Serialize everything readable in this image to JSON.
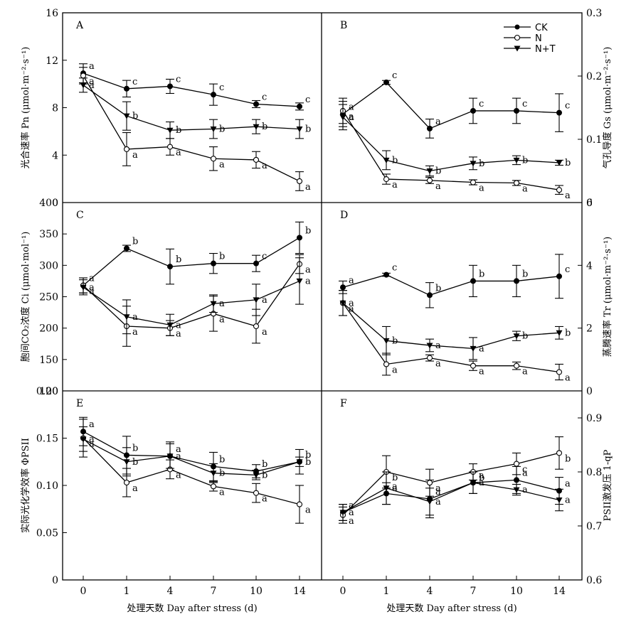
{
  "chart_data": {
    "type": "line",
    "shared_x_categories": [
      "0",
      "1",
      "4",
      "7",
      "10",
      "14"
    ],
    "x_axis_label": "处理天数 Day after stress (d)",
    "legend": [
      {
        "name": "CK",
        "marker": "filled-circle"
      },
      {
        "name": "N",
        "marker": "open-circle"
      },
      {
        "name": "N+T",
        "marker": "filled-triangle-down"
      }
    ],
    "panels": [
      {
        "letter": "A",
        "ylabel": "光合速率 Pn (μmol·m⁻²·s⁻¹)",
        "ylim": [
          0,
          16
        ],
        "yticks": [
          "0",
          "4",
          "8",
          "12",
          "16"
        ],
        "series": [
          {
            "name": "CK",
            "values": [
              10.9,
              9.6,
              9.8,
              9.1,
              8.3,
              8.1
            ],
            "errors": [
              0.8,
              0.7,
              0.6,
              0.9,
              0.3,
              0.3
            ],
            "letters": [
              "a",
              "c",
              "c",
              "c",
              "c",
              "c"
            ]
          },
          {
            "name": "N",
            "values": [
              10.7,
              4.5,
              4.7,
              3.7,
              3.6,
              1.8
            ],
            "errors": [
              0.7,
              1.4,
              0.7,
              1.0,
              0.7,
              0.8
            ],
            "letters": [
              "a",
              "a",
              "a",
              "a",
              "a",
              "a"
            ]
          },
          {
            "name": "N+T",
            "values": [
              9.9,
              7.3,
              6.1,
              6.2,
              6.4,
              6.2
            ],
            "errors": [
              0.6,
              1.2,
              0.7,
              0.8,
              0.6,
              0.8
            ],
            "letters": [
              "a",
              "b",
              "b",
              "b",
              "b",
              "b"
            ]
          }
        ]
      },
      {
        "letter": "B",
        "ylabel": "气孔导度 Gs (μmol·m⁻²·s⁻¹)",
        "ylim": [
          0,
          0.3
        ],
        "yticks": [
          "0",
          "0.1",
          "0.2",
          "0.3"
        ],
        "series": [
          {
            "name": "CK",
            "values": [
              0.14,
              0.19,
              0.117,
              0.145,
              0.145,
              0.142
            ],
            "errors": [
              0.02,
              0.003,
              0.015,
              0.02,
              0.02,
              0.03
            ],
            "letters": [
              "a",
              "c",
              "a",
              "c",
              "c",
              "c"
            ]
          },
          {
            "name": "N",
            "values": [
              0.145,
              0.037,
              0.035,
              0.032,
              0.031,
              0.02
            ],
            "errors": [
              0.02,
              0.008,
              0.005,
              0.004,
              0.004,
              0.007
            ],
            "letters": [
              "a",
              "a",
              "a",
              "a",
              "a",
              "a"
            ]
          },
          {
            "name": "N+T",
            "values": [
              0.135,
              0.067,
              0.05,
              0.062,
              0.067,
              0.063
            ],
            "errors": [
              0.02,
              0.015,
              0.008,
              0.01,
              0.007,
              0.004
            ],
            "letters": [
              "a",
              "b",
              "b",
              "b",
              "b",
              "b"
            ]
          }
        ]
      },
      {
        "letter": "C",
        "ylabel": "胞间CO₂浓度 Ci (μmol·mol⁻¹)",
        "ylim": [
          100,
          400
        ],
        "yticks": [
          "100",
          "150",
          "200",
          "250",
          "300",
          "350",
          "400"
        ],
        "series": [
          {
            "name": "CK",
            "values": [
              268,
              327,
              298,
              303,
              303,
              344
            ],
            "errors": [
              12,
              5,
              28,
              16,
              13,
              25
            ],
            "letters": [
              "a",
              "b",
              "b",
              "b",
              "c",
              "b"
            ]
          },
          {
            "name": "N",
            "values": [
              268,
              203,
              200,
              223,
              203,
              302
            ],
            "errors": [
              12,
              32,
              12,
              28,
              27,
              15
            ],
            "letters": [
              "a",
              "a",
              "a",
              "a",
              "a",
              "a"
            ]
          },
          {
            "name": "N+T",
            "values": [
              265,
              218,
              205,
              239,
              245,
              275
            ],
            "errors": [
              12,
              27,
              17,
              14,
              25,
              37
            ],
            "letters": [
              "a",
              "a",
              "a",
              "a",
              "a",
              "a"
            ]
          }
        ]
      },
      {
        "letter": "D",
        "ylabel": "蒸腾速率 Tr (μmol·m⁻²·s⁻¹)",
        "ylim": [
          0,
          6
        ],
        "yticks": [
          "0",
          "2",
          "4",
          "6"
        ],
        "series": [
          {
            "name": "CK",
            "values": [
              3.3,
              3.7,
              3.05,
              3.5,
              3.5,
              3.65
            ],
            "errors": [
              0.2,
              0.05,
              0.4,
              0.5,
              0.5,
              0.7
            ],
            "letters": [
              "a",
              "c",
              "b",
              "b",
              "b",
              "c"
            ]
          },
          {
            "name": "N",
            "values": [
              2.8,
              0.85,
              1.05,
              0.8,
              0.8,
              0.6
            ],
            "errors": [
              0.4,
              0.35,
              0.1,
              0.15,
              0.12,
              0.25
            ],
            "letters": [
              "a",
              "a",
              "a",
              "a",
              "a",
              "a"
            ]
          },
          {
            "name": "N+T",
            "values": [
              2.8,
              1.6,
              1.45,
              1.35,
              1.75,
              1.85
            ],
            "errors": [
              0.4,
              0.45,
              0.2,
              0.35,
              0.15,
              0.2
            ],
            "letters": [
              "a",
              "b",
              "a",
              "a",
              "b",
              "b"
            ]
          }
        ]
      },
      {
        "letter": "E",
        "ylabel": "实际光化学效率 ΦPSII",
        "ylim": [
          0,
          0.2
        ],
        "yticks": [
          "0",
          "0.05",
          "0.10",
          "0.15",
          "0.20"
        ],
        "series": [
          {
            "name": "CK",
            "values": [
              0.157,
              0.132,
              0.131,
              0.12,
              0.115,
              0.125
            ],
            "errors": [
              0.015,
              0.02,
              0.015,
              0.015,
              0.007,
              0.013
            ],
            "letters": [
              "a",
              "b",
              "a",
              "b",
              "b",
              "b"
            ]
          },
          {
            "name": "N",
            "values": [
              0.15,
              0.103,
              0.117,
              0.099,
              0.092,
              0.08
            ],
            "errors": [
              0.02,
              0.015,
              0.01,
              0.005,
              0.01,
              0.02
            ],
            "letters": [
              "a",
              "a",
              "a",
              "a",
              "a",
              "a"
            ]
          },
          {
            "name": "N+T",
            "values": [
              0.149,
              0.125,
              0.131,
              0.113,
              0.111,
              0.125
            ],
            "errors": [
              0.013,
              0.015,
              0.013,
              0.01,
              0.005,
              0.005
            ],
            "letters": [
              "a",
              "b",
              "a",
              "b",
              "b",
              "b"
            ]
          }
        ]
      },
      {
        "letter": "F",
        "ylabel": "PSII激发压 1-qP",
        "ylim": [
          0.6,
          0.95
        ],
        "yticks": [
          "0.6",
          "0.7",
          "0.8",
          "0.9"
        ],
        "series": [
          {
            "name": "CK",
            "values": [
              0.725,
              0.76,
              0.75,
              0.78,
              0.785,
              0.765
            ],
            "errors": [
              0.015,
              0.02,
              0.035,
              0.02,
              0.025,
              0.025
            ],
            "letters": [
              "a",
              "a",
              "a",
              "a",
              "a",
              "a"
            ]
          },
          {
            "name": "N",
            "values": [
              0.72,
              0.8,
              0.78,
              0.8,
              0.815,
              0.835
            ],
            "errors": [
              0.015,
              0.03,
              0.025,
              0.015,
              0.02,
              0.03
            ],
            "letters": [
              "a",
              "b",
              "a",
              "b",
              "c",
              "b"
            ]
          },
          {
            "name": "N+T",
            "values": [
              0.725,
              0.77,
              0.745,
              0.78,
              0.767,
              0.748
            ],
            "errors": [
              0.015,
              0.03,
              0.025,
              0.02,
              0.01,
              0.02
            ],
            "letters": [
              "a",
              "a",
              "a",
              "a",
              "a",
              "a"
            ]
          }
        ]
      }
    ]
  }
}
